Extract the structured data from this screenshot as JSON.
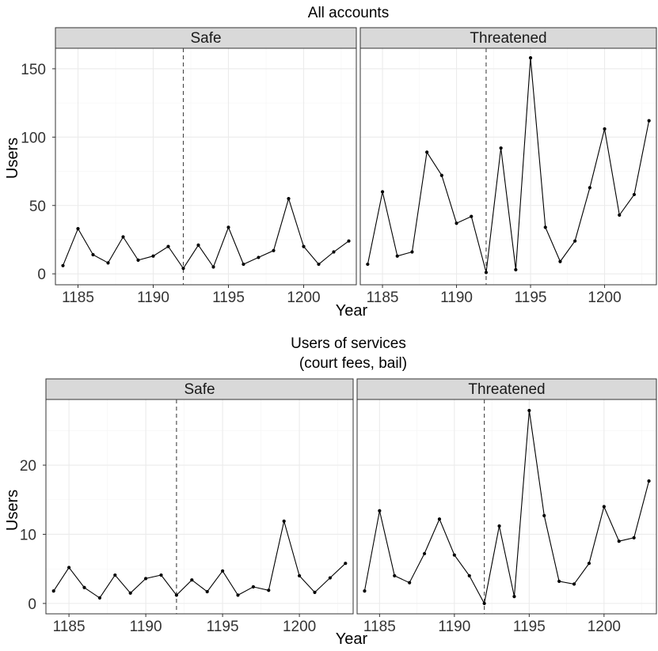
{
  "chart_data": [
    {
      "type": "line",
      "title": "All accounts",
      "xlabel": "Year",
      "ylabel": "Users",
      "xlim": [
        1183.5,
        1203.5
      ],
      "ylim": [
        -8,
        165
      ],
      "x_ticks": [
        1185,
        1190,
        1195,
        1200
      ],
      "y_ticks": [
        0,
        50,
        100,
        150
      ],
      "reference_line_x": 1192,
      "grid": true,
      "panels": [
        {
          "name": "Safe",
          "x": [
            1184,
            1185,
            1186,
            1187,
            1188,
            1189,
            1190,
            1191,
            1192,
            1193,
            1194,
            1195,
            1196,
            1197,
            1198,
            1199,
            1200,
            1201,
            1202,
            1203
          ],
          "y": [
            6,
            33,
            14,
            8,
            27,
            10,
            13,
            20,
            4,
            21,
            5,
            34,
            7,
            12,
            17,
            55,
            20,
            7,
            16,
            24
          ]
        },
        {
          "name": "Threatened",
          "x": [
            1184,
            1185,
            1186,
            1187,
            1188,
            1189,
            1190,
            1191,
            1192,
            1193,
            1194,
            1195,
            1196,
            1197,
            1198,
            1199,
            1200,
            1201,
            1202,
            1203
          ],
          "y": [
            7,
            60,
            13,
            16,
            89,
            72,
            37,
            42,
            1,
            92,
            3,
            158,
            34,
            9,
            24,
            63,
            106,
            43,
            58,
            112
          ]
        }
      ]
    },
    {
      "type": "line",
      "title": "Users of services\n(court fees, bail)",
      "xlabel": "Year",
      "ylabel": "Users",
      "xlim": [
        1183.5,
        1203.5
      ],
      "ylim": [
        -1.5,
        29.5
      ],
      "x_ticks": [
        1185,
        1190,
        1195,
        1200
      ],
      "y_ticks": [
        0,
        10,
        20
      ],
      "reference_line_x": 1192,
      "grid": true,
      "panels": [
        {
          "name": "Safe",
          "x": [
            1184,
            1185,
            1186,
            1187,
            1188,
            1189,
            1190,
            1191,
            1192,
            1193,
            1194,
            1195,
            1196,
            1197,
            1198,
            1199,
            1200,
            1201,
            1202,
            1203
          ],
          "y": [
            1.8,
            5.2,
            2.3,
            0.8,
            4.1,
            1.5,
            3.6,
            4.1,
            1.2,
            3.4,
            1.7,
            4.7,
            1.2,
            2.4,
            1.9,
            11.9,
            4.0,
            1.6,
            3.7,
            5.8
          ]
        },
        {
          "name": "Threatened",
          "x": [
            1184,
            1185,
            1186,
            1187,
            1188,
            1189,
            1190,
            1191,
            1192,
            1193,
            1194,
            1195,
            1196,
            1197,
            1198,
            1199,
            1200,
            1201,
            1202,
            1203
          ],
          "y": [
            1.8,
            13.4,
            4.0,
            3.0,
            7.2,
            12.2,
            7.0,
            4.0,
            0.0,
            11.2,
            1.0,
            27.9,
            12.7,
            3.2,
            2.8,
            5.8,
            14.0,
            9.0,
            9.5,
            17.7
          ]
        }
      ]
    }
  ]
}
